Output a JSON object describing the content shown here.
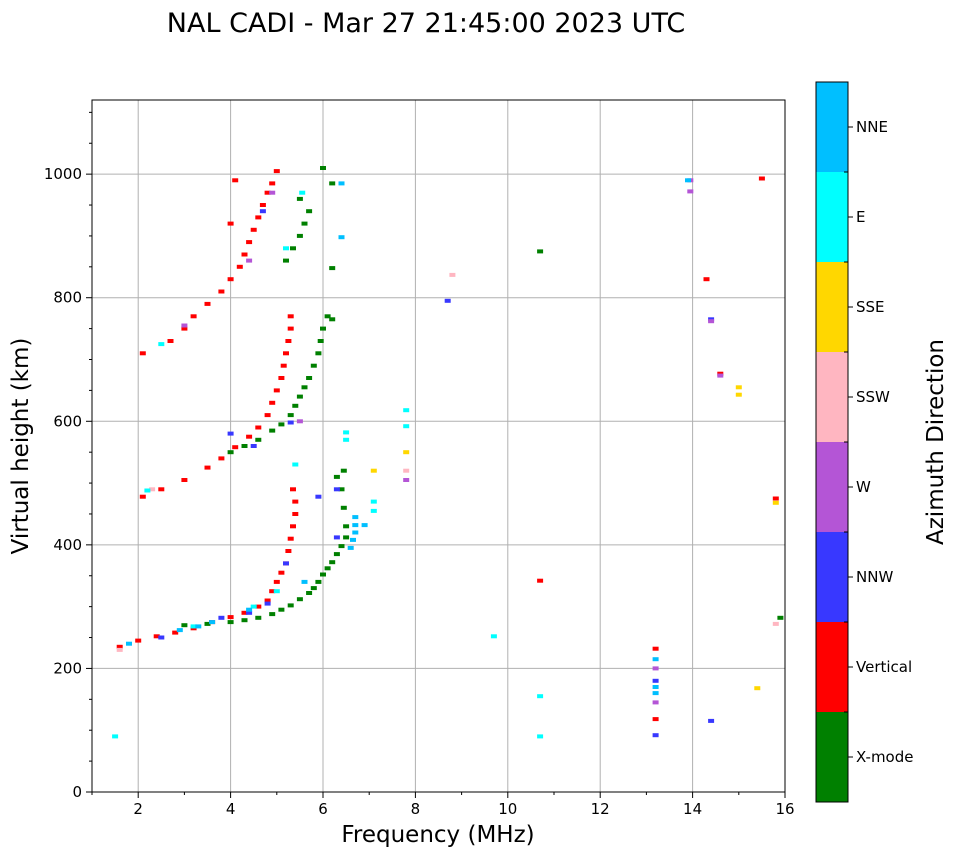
{
  "chart_data": {
    "type": "scatter",
    "title": "NAL CADI - Mar 27 21:45:00 2023 UTC",
    "xlabel": "Frequency (MHz)",
    "ylabel": "Virtual height (km)",
    "xlim": [
      1,
      16
    ],
    "ylim": [
      0,
      1120
    ],
    "xticks": [
      2,
      4,
      6,
      8,
      10,
      12,
      14,
      16
    ],
    "yticks": [
      0,
      200,
      400,
      600,
      800,
      1000
    ],
    "grid": true,
    "colorbar": {
      "label": "Azimuth Direction",
      "categories": [
        "X-mode",
        "Vertical",
        "NNW",
        "W",
        "SSW",
        "SSE",
        "E",
        "NNE"
      ],
      "colors": [
        "#008000",
        "#ff0000",
        "#3838ff",
        "#b455d6",
        "#ffb6c1",
        "#ffd700",
        "#00ffff",
        "#00bfff"
      ]
    },
    "series": [
      {
        "name": "X-mode",
        "color": "#008000",
        "points": [
          [
            3.0,
            270
          ],
          [
            3.5,
            272
          ],
          [
            4.0,
            275
          ],
          [
            4.3,
            278
          ],
          [
            4.6,
            282
          ],
          [
            4.9,
            288
          ],
          [
            5.1,
            295
          ],
          [
            5.3,
            302
          ],
          [
            5.5,
            312
          ],
          [
            5.7,
            322
          ],
          [
            5.8,
            330
          ],
          [
            5.9,
            340
          ],
          [
            6.0,
            352
          ],
          [
            6.1,
            362
          ],
          [
            6.2,
            372
          ],
          [
            6.3,
            385
          ],
          [
            6.4,
            398
          ],
          [
            6.5,
            412
          ],
          [
            6.5,
            430
          ],
          [
            6.45,
            460
          ],
          [
            6.4,
            490
          ],
          [
            6.3,
            510
          ],
          [
            6.45,
            520
          ],
          [
            4.0,
            550
          ],
          [
            4.3,
            560
          ],
          [
            4.6,
            570
          ],
          [
            4.9,
            585
          ],
          [
            5.1,
            595
          ],
          [
            5.3,
            610
          ],
          [
            5.4,
            625
          ],
          [
            5.5,
            640
          ],
          [
            5.6,
            655
          ],
          [
            5.7,
            670
          ],
          [
            5.8,
            690
          ],
          [
            5.9,
            710
          ],
          [
            5.95,
            730
          ],
          [
            6.0,
            750
          ],
          [
            6.1,
            770
          ],
          [
            6.2,
            765
          ],
          [
            5.2,
            860
          ],
          [
            5.35,
            880
          ],
          [
            5.5,
            900
          ],
          [
            5.6,
            920
          ],
          [
            5.7,
            940
          ],
          [
            5.5,
            960
          ],
          [
            6.0,
            1010
          ],
          [
            6.2,
            985
          ],
          [
            6.2,
            848
          ],
          [
            10.7,
            875
          ],
          [
            15.9,
            282
          ]
        ]
      },
      {
        "name": "Vertical",
        "color": "#ff0000",
        "points": [
          [
            1.6,
            235
          ],
          [
            2.0,
            245
          ],
          [
            2.4,
            252
          ],
          [
            2.8,
            258
          ],
          [
            3.2,
            265
          ],
          [
            3.6,
            275
          ],
          [
            4.0,
            283
          ],
          [
            4.3,
            290
          ],
          [
            4.6,
            300
          ],
          [
            4.8,
            310
          ],
          [
            4.9,
            325
          ],
          [
            5.0,
            340
          ],
          [
            5.1,
            355
          ],
          [
            5.2,
            370
          ],
          [
            5.25,
            390
          ],
          [
            5.3,
            410
          ],
          [
            5.35,
            430
          ],
          [
            5.4,
            450
          ],
          [
            5.4,
            470
          ],
          [
            5.35,
            490
          ],
          [
            2.1,
            478
          ],
          [
            2.5,
            490
          ],
          [
            3.0,
            505
          ],
          [
            3.5,
            525
          ],
          [
            3.8,
            540
          ],
          [
            4.1,
            558
          ],
          [
            4.4,
            575
          ],
          [
            4.6,
            590
          ],
          [
            4.8,
            610
          ],
          [
            4.9,
            630
          ],
          [
            5.0,
            650
          ],
          [
            5.1,
            670
          ],
          [
            5.15,
            690
          ],
          [
            5.2,
            710
          ],
          [
            5.25,
            730
          ],
          [
            5.3,
            750
          ],
          [
            5.3,
            770
          ],
          [
            2.1,
            710
          ],
          [
            2.7,
            730
          ],
          [
            3.0,
            750
          ],
          [
            3.2,
            770
          ],
          [
            3.5,
            790
          ],
          [
            3.8,
            810
          ],
          [
            4.0,
            830
          ],
          [
            4.2,
            850
          ],
          [
            4.3,
            870
          ],
          [
            4.4,
            890
          ],
          [
            4.5,
            910
          ],
          [
            4.6,
            930
          ],
          [
            4.7,
            950
          ],
          [
            4.8,
            970
          ],
          [
            4.9,
            985
          ],
          [
            5.0,
            1005
          ],
          [
            4.0,
            920
          ],
          [
            4.1,
            990
          ],
          [
            10.7,
            342
          ],
          [
            13.2,
            118
          ],
          [
            13.2,
            232
          ],
          [
            14.3,
            830
          ],
          [
            15.5,
            993
          ],
          [
            15.8,
            475
          ],
          [
            14.6,
            677
          ]
        ]
      },
      {
        "name": "NNW",
        "color": "#3838ff",
        "points": [
          [
            2.5,
            250
          ],
          [
            3.8,
            282
          ],
          [
            4.4,
            290
          ],
          [
            4.8,
            305
          ],
          [
            5.2,
            370
          ],
          [
            4.5,
            560
          ],
          [
            5.3,
            598
          ],
          [
            6.3,
            412
          ],
          [
            6.3,
            490
          ],
          [
            8.7,
            795
          ],
          [
            13.2,
            92
          ],
          [
            13.2,
            180
          ],
          [
            14.4,
            115
          ],
          [
            14.4,
            765
          ],
          [
            4.7,
            940
          ],
          [
            5.9,
            478
          ],
          [
            4.0,
            580
          ]
        ]
      },
      {
        "name": "W",
        "color": "#b455d6",
        "points": [
          [
            3.0,
            755
          ],
          [
            4.9,
            970
          ],
          [
            4.4,
            860
          ],
          [
            5.5,
            600
          ],
          [
            7.8,
            505
          ],
          [
            13.2,
            200
          ],
          [
            13.2,
            145
          ],
          [
            13.95,
            990
          ],
          [
            13.95,
            972
          ],
          [
            14.4,
            762
          ],
          [
            14.6,
            674
          ]
        ]
      },
      {
        "name": "SSW",
        "color": "#ffb6c1",
        "points": [
          [
            1.6,
            230
          ],
          [
            2.3,
            490
          ],
          [
            8.8,
            837
          ],
          [
            15.8,
            272
          ],
          [
            7.8,
            520
          ]
        ]
      },
      {
        "name": "SSE",
        "color": "#ffd700",
        "points": [
          [
            7.8,
            550
          ],
          [
            15.0,
            655
          ],
          [
            15.0,
            643
          ],
          [
            15.4,
            168
          ],
          [
            15.8,
            468
          ],
          [
            7.1,
            520
          ]
        ]
      },
      {
        "name": "E",
        "color": "#00ffff",
        "points": [
          [
            1.5,
            90
          ],
          [
            2.5,
            725
          ],
          [
            2.2,
            488
          ],
          [
            3.2,
            268
          ],
          [
            4.5,
            300
          ],
          [
            5.0,
            325
          ],
          [
            5.4,
            530
          ],
          [
            6.5,
            582
          ],
          [
            6.5,
            570
          ],
          [
            7.1,
            470
          ],
          [
            7.1,
            455
          ],
          [
            7.8,
            618
          ],
          [
            7.8,
            592
          ],
          [
            9.7,
            252
          ],
          [
            10.7,
            155
          ],
          [
            10.7,
            90
          ],
          [
            5.2,
            880
          ],
          [
            5.55,
            970
          ]
        ]
      },
      {
        "name": "NNE",
        "color": "#00bfff",
        "points": [
          [
            1.8,
            240
          ],
          [
            2.9,
            262
          ],
          [
            3.3,
            268
          ],
          [
            3.6,
            275
          ],
          [
            4.4,
            295
          ],
          [
            5.6,
            340
          ],
          [
            6.7,
            432
          ],
          [
            6.7,
            420
          ],
          [
            6.7,
            445
          ],
          [
            6.65,
            408
          ],
          [
            6.6,
            395
          ],
          [
            6.4,
            985
          ],
          [
            6.4,
            898
          ],
          [
            13.2,
            160
          ],
          [
            13.2,
            215
          ],
          [
            13.2,
            170
          ],
          [
            13.9,
            990
          ],
          [
            6.9,
            432
          ]
        ]
      }
    ]
  }
}
